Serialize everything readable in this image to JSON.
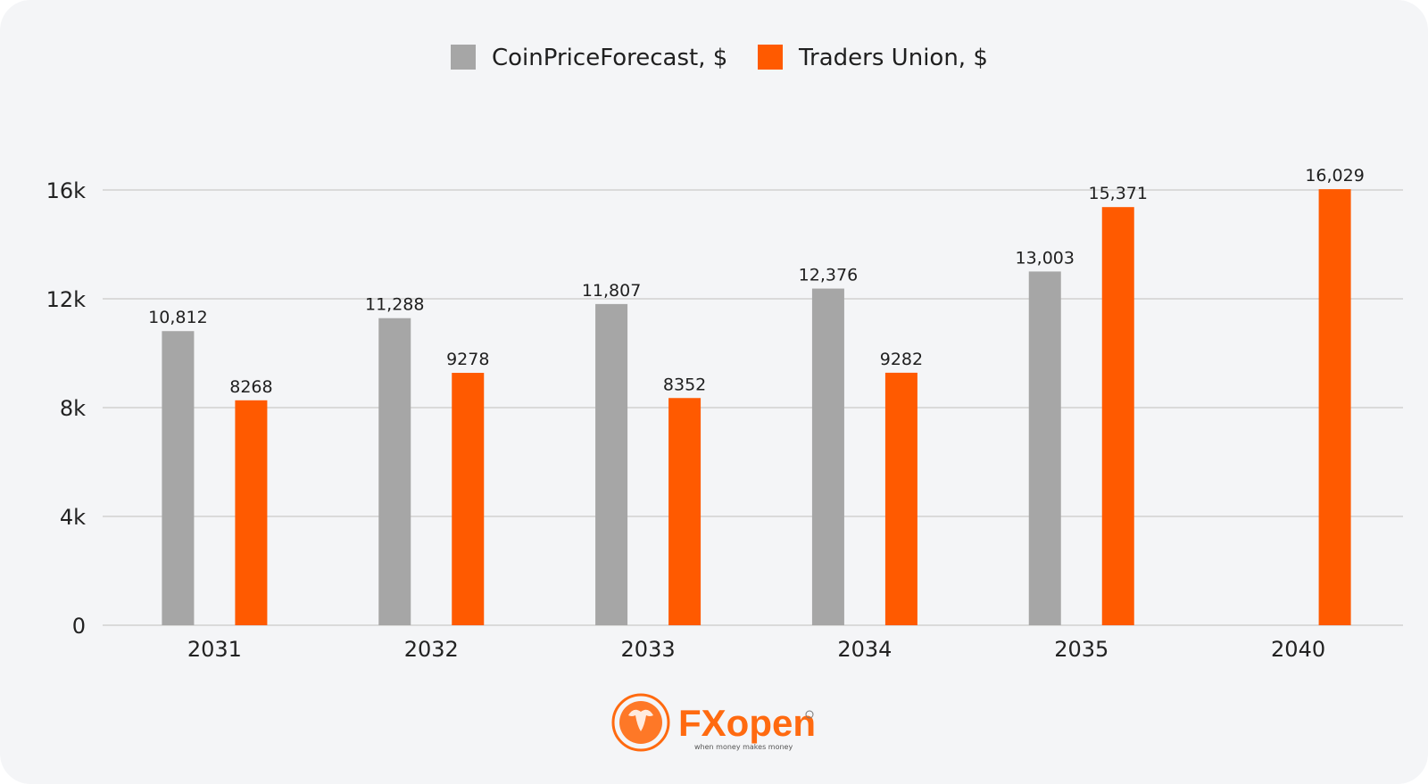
{
  "chart_data": {
    "type": "bar",
    "categories": [
      "2031",
      "2032",
      "2033",
      "2034",
      "2035",
      "2040"
    ],
    "series": [
      {
        "name": "CoinPriceForecast, $",
        "color": "#a6a6a6",
        "values": [
          10812,
          11288,
          11807,
          12376,
          13003,
          null
        ],
        "labels": [
          "10,812",
          "11,288",
          "11,807",
          "12,376",
          "13,003",
          ""
        ]
      },
      {
        "name": "Traders Union, $",
        "color": "#ff5a00",
        "values": [
          8268,
          9278,
          8352,
          9282,
          15371,
          16029
        ],
        "labels": [
          "8268",
          "9278",
          "8352",
          "9282",
          "15,371",
          "16,029"
        ]
      }
    ],
    "ylim": [
      0,
      16000
    ],
    "yticks": [
      0,
      4000,
      8000,
      12000,
      16000
    ],
    "ytick_labels": [
      "0",
      "4k",
      "8k",
      "12k",
      "16k"
    ],
    "grid": true,
    "legend_position": "top-center"
  },
  "logo": {
    "text": "FXopen",
    "tagline": "when money makes money",
    "color": "#ff6a10"
  }
}
